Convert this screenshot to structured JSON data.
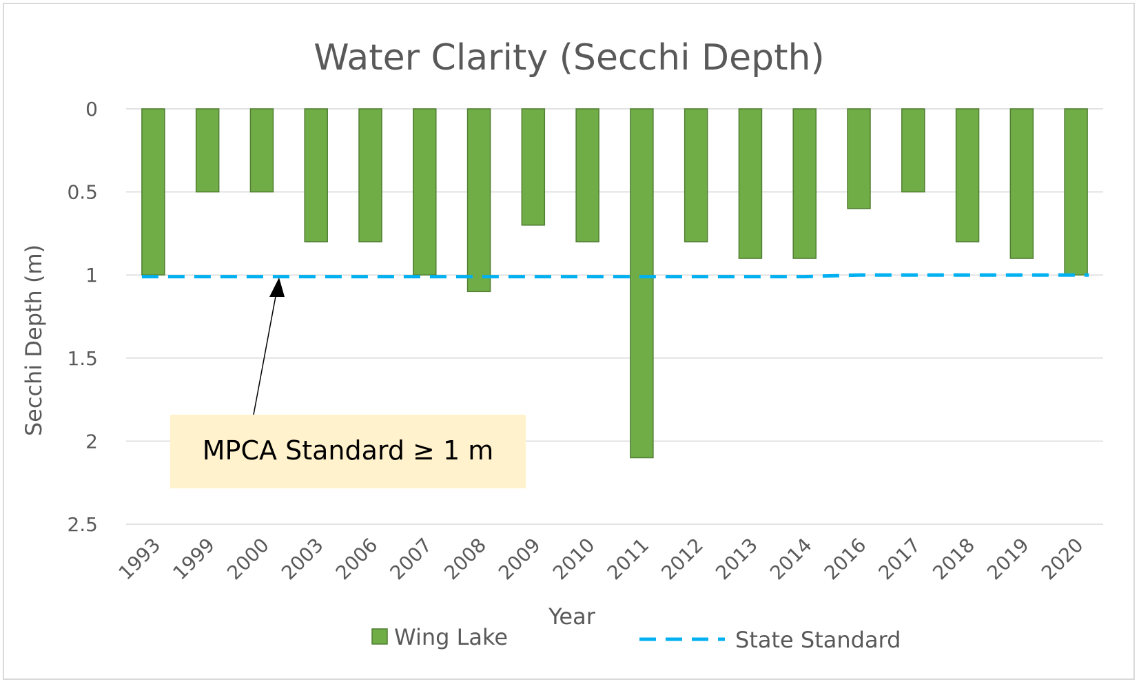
{
  "colors": {
    "bar_fill": "#70ad47",
    "bar_stroke": "#507e32",
    "standard_line": "#00b0f0",
    "gridline": "#d9d9d9",
    "annotation_bg": "#fff2cc",
    "text": "#595959"
  },
  "annotation": {
    "text": "MPCA Standard ≥ 1 m"
  },
  "chart_data": {
    "type": "bar",
    "title": "Water Clarity (Secchi Depth)",
    "xlabel": "Year",
    "ylabel": "Secchi Depth (m)",
    "y_inverted": true,
    "ylim": [
      0,
      2.5
    ],
    "yticks": [
      "0",
      "0.5",
      "1",
      "1.5",
      "2",
      "2.5"
    ],
    "ytick_values": [
      0,
      0.5,
      1,
      1.5,
      2,
      2.5
    ],
    "grid": true,
    "legend_position": "bottom",
    "categories": [
      "1993",
      "1999",
      "2000",
      "2003",
      "2006",
      "2007",
      "2008",
      "2009",
      "2010",
      "2011",
      "2012",
      "2013",
      "2014",
      "2016",
      "2017",
      "2018",
      "2019",
      "2020"
    ],
    "series": [
      {
        "name": "Wing Lake",
        "type": "bar",
        "values": [
          1.0,
          0.5,
          0.5,
          0.8,
          0.8,
          1.0,
          1.1,
          0.7,
          0.8,
          2.1,
          0.8,
          0.9,
          0.9,
          0.6,
          0.5,
          0.8,
          0.9,
          1.0
        ]
      },
      {
        "name": "State Standard",
        "type": "line",
        "style": "dashed",
        "values": [
          1.01,
          1.01,
          1.01,
          1.01,
          1.01,
          1.01,
          1.01,
          1.01,
          1.01,
          1.01,
          1.01,
          1.01,
          1.01,
          1.0,
          1.0,
          1.0,
          1.0,
          1.0
        ]
      }
    ]
  }
}
